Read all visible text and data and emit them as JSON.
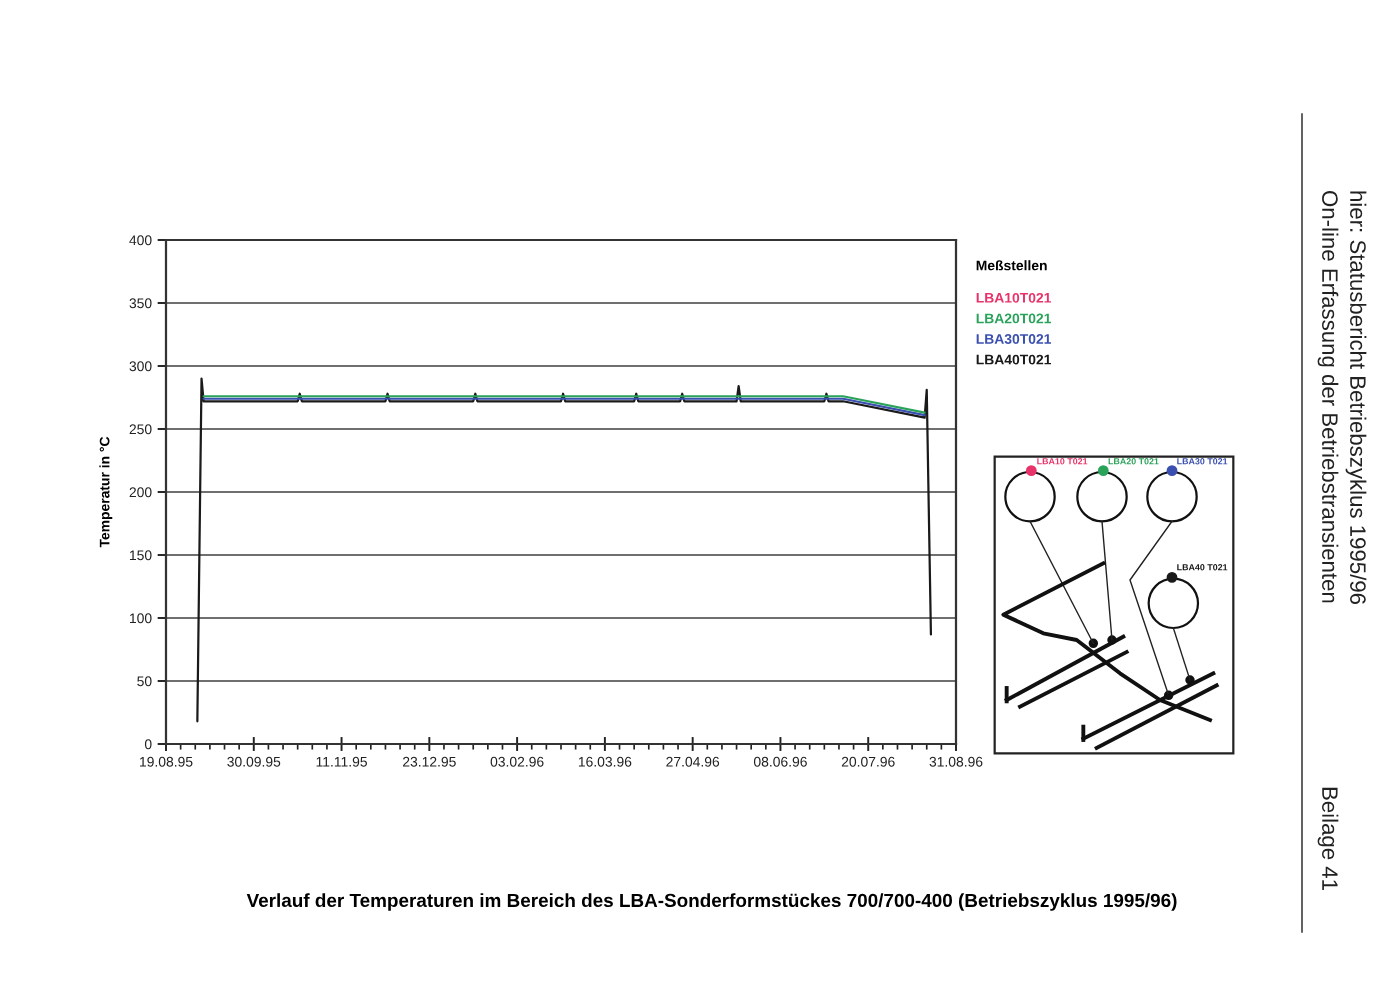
{
  "chart_data": {
    "type": "line",
    "title": "Verlauf der Temperaturen im Bereich des LBA-Sonderformstückes 700/700-400 (Betriebszyklus 1995/96)",
    "ylabel": "Temperatur in °C",
    "legend_title": "Meßstellen",
    "legend": "right",
    "grid": "y",
    "annotations": [
      "LBA10 T021",
      "LBA20 T021",
      "LBA30 T021",
      "LBA40 T021",
      "On-line Erfassung der Betriebstransienten",
      "hier: Statusbericht Betriebszyklus 1995/96",
      "Beilage 41"
    ],
    "x": [
      "1995-09-06",
      "1996-07-08",
      "1996-08-16"
    ],
    "series": [
      {
        "name": "LBA10T021",
        "color": "#e8336a",
        "values": [
          null,
          null,
          null
        ]
      },
      {
        "name": "LBA20T021",
        "color": "#2aa35a",
        "values": [
          276,
          276,
          263
        ]
      },
      {
        "name": "LBA30T021",
        "color": "#3a4fb0",
        "values": [
          274,
          274,
          261
        ]
      },
      {
        "name": "LBA40T021",
        "color": "#1a1a1a",
        "x": [
          "1995-09-03",
          "1995-09-05",
          "1995-09-06",
          "1995-10-21",
          "1995-10-22",
          "1995-10-23",
          "1995-12-02",
          "1995-12-03",
          "1995-12-04",
          "1996-01-13",
          "1996-01-14",
          "1996-01-15",
          "1996-02-24",
          "1996-02-25",
          "1996-02-26",
          "1996-03-30",
          "1996-03-31",
          "1996-04-01",
          "1996-04-21",
          "1996-04-22",
          "1996-04-23",
          "1996-05-18",
          "1996-05-19",
          "1996-05-20",
          "1996-06-29",
          "1996-06-30",
          "1996-07-01",
          "1996-07-08",
          "1996-08-16",
          "1996-08-17",
          "1996-08-19"
        ],
        "values": [
          18,
          290,
          272,
          272,
          278,
          272,
          272,
          278,
          272,
          272,
          278,
          272,
          272,
          278,
          272,
          272,
          278,
          272,
          272,
          278,
          272,
          272,
          284,
          272,
          272,
          278,
          272,
          272,
          259,
          281,
          87
        ]
      }
    ],
    "xlim": [
      "1995-08-19",
      "1996-08-31"
    ],
    "xticks": [
      {
        "value": "1995-08-19",
        "label": "19.08.95"
      },
      {
        "value": "1995-08-26",
        "label": null
      },
      {
        "value": "1995-09-02",
        "label": null
      },
      {
        "value": "1995-09-09",
        "label": null
      },
      {
        "value": "1995-09-16",
        "label": null
      },
      {
        "value": "1995-09-23",
        "label": null
      },
      {
        "value": "1995-09-30",
        "label": "30.09.95"
      },
      {
        "value": "1995-10-07",
        "label": null
      },
      {
        "value": "1995-10-14",
        "label": null
      },
      {
        "value": "1995-10-21",
        "label": null
      },
      {
        "value": "1995-10-28",
        "label": null
      },
      {
        "value": "1995-11-04",
        "label": null
      },
      {
        "value": "1995-11-11",
        "label": "11.11.95"
      },
      {
        "value": "1995-11-18",
        "label": null
      },
      {
        "value": "1995-11-25",
        "label": null
      },
      {
        "value": "1995-12-02",
        "label": null
      },
      {
        "value": "1995-12-09",
        "label": null
      },
      {
        "value": "1995-12-16",
        "label": null
      },
      {
        "value": "1995-12-23",
        "label": "23.12.95"
      },
      {
        "value": "1995-12-30",
        "label": null
      },
      {
        "value": "1996-01-06",
        "label": null
      },
      {
        "value": "1996-01-13",
        "label": null
      },
      {
        "value": "1996-01-20",
        "label": null
      },
      {
        "value": "1996-01-27",
        "label": null
      },
      {
        "value": "1996-02-03",
        "label": "03.02.96"
      },
      {
        "value": "1996-02-10",
        "label": null
      },
      {
        "value": "1996-02-17",
        "label": null
      },
      {
        "value": "1996-02-24",
        "label": null
      },
      {
        "value": "1996-03-02",
        "label": null
      },
      {
        "value": "1996-03-09",
        "label": null
      },
      {
        "value": "1996-03-16",
        "label": "16.03.96"
      },
      {
        "value": "1996-03-23",
        "label": null
      },
      {
        "value": "1996-03-30",
        "label": null
      },
      {
        "value": "1996-04-06",
        "label": null
      },
      {
        "value": "1996-04-13",
        "label": null
      },
      {
        "value": "1996-04-20",
        "label": null
      },
      {
        "value": "1996-04-27",
        "label": "27.04.96"
      },
      {
        "value": "1996-05-04",
        "label": null
      },
      {
        "value": "1996-05-11",
        "label": null
      },
      {
        "value": "1996-05-18",
        "label": null
      },
      {
        "value": "1996-05-25",
        "label": null
      },
      {
        "value": "1996-06-01",
        "label": null
      },
      {
        "value": "1996-06-08",
        "label": "08.06.96"
      },
      {
        "value": "1996-06-15",
        "label": null
      },
      {
        "value": "1996-06-22",
        "label": null
      },
      {
        "value": "1996-06-29",
        "label": null
      },
      {
        "value": "1996-07-06",
        "label": null
      },
      {
        "value": "1996-07-13",
        "label": null
      },
      {
        "value": "1996-07-20",
        "label": "20.07.96"
      },
      {
        "value": "1996-07-27",
        "label": null
      },
      {
        "value": "1996-08-03",
        "label": null
      },
      {
        "value": "1996-08-10",
        "label": null
      },
      {
        "value": "1996-08-17",
        "label": null
      },
      {
        "value": "1996-08-24",
        "label": null
      },
      {
        "value": "1996-08-31",
        "label": "31.08.96"
      }
    ],
    "ylim": [
      0,
      400
    ],
    "yticks": [
      0,
      50,
      100,
      150,
      200,
      250,
      300,
      350,
      400
    ]
  }
}
